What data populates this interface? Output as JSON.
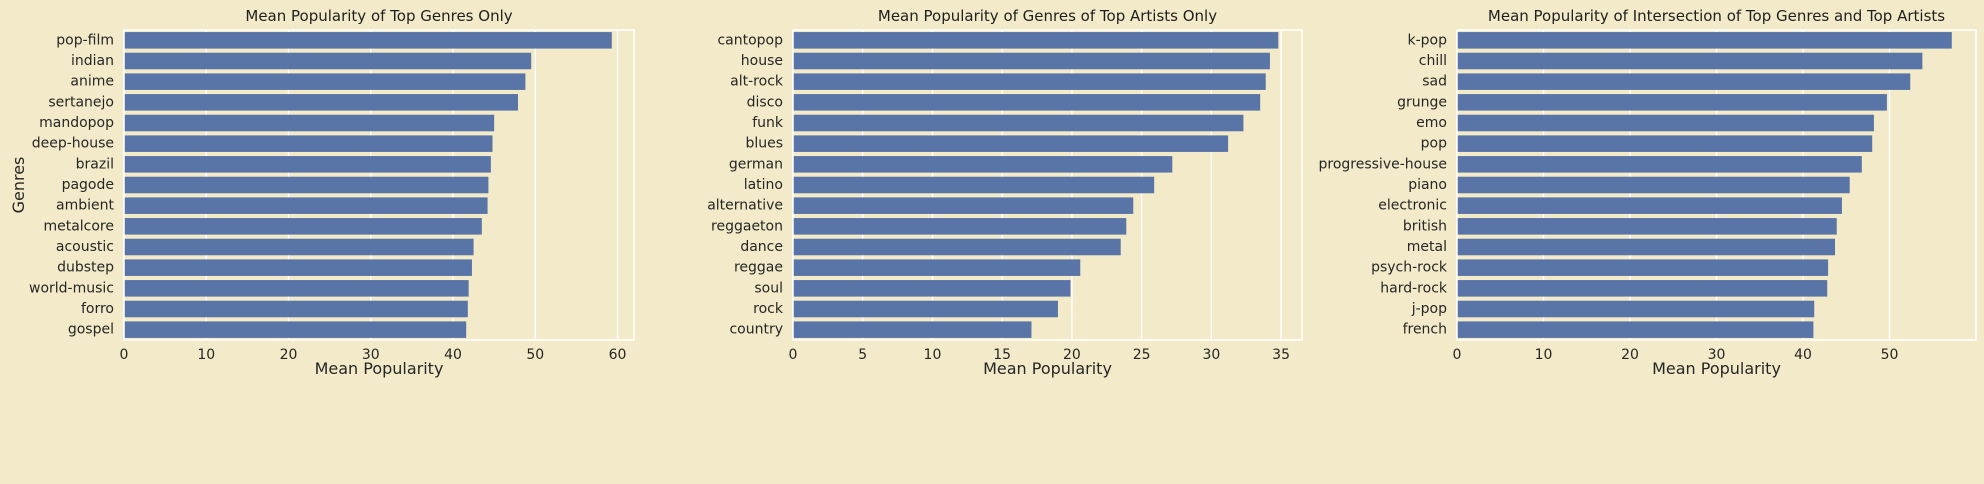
{
  "style": {
    "figure_background": "#F2EAC8",
    "plot_background": "#F2EAC8",
    "grid_color": "#FFFFFF",
    "bar_color": "#5975A7",
    "text_color": "#262626"
  },
  "chart_data": [
    {
      "type": "bar",
      "orientation": "horizontal",
      "title": "Mean Popularity of Top Genres Only",
      "xlabel": "Mean Popularity",
      "ylabel": "Genres",
      "xlim": [
        0,
        62
      ],
      "xticks": [
        0,
        10,
        20,
        30,
        40,
        50,
        60
      ],
      "grid": true,
      "categories": [
        "pop-film",
        "indian",
        "anime",
        "sertanejo",
        "mandopop",
        "deep-house",
        "brazil",
        "pagode",
        "ambient",
        "metalcore",
        "acoustic",
        "dubstep",
        "world-music",
        "forro",
        "gospel"
      ],
      "values": [
        59.3,
        49.5,
        48.8,
        47.9,
        45.0,
        44.8,
        44.6,
        44.3,
        44.2,
        43.5,
        42.5,
        42.3,
        41.9,
        41.8,
        41.6
      ]
    },
    {
      "type": "bar",
      "orientation": "horizontal",
      "title": "Mean Popularity of Genres of Top Artists Only",
      "xlabel": "Mean Popularity",
      "ylabel": "",
      "xlim": [
        0,
        36.5
      ],
      "xticks": [
        0,
        5,
        10,
        15,
        20,
        25,
        30,
        35
      ],
      "grid": true,
      "categories": [
        "cantopop",
        "house",
        "alt-rock",
        "disco",
        "funk",
        "blues",
        "german",
        "latino",
        "alternative",
        "reggaeton",
        "dance",
        "reggae",
        "soul",
        "rock",
        "country"
      ],
      "values": [
        34.8,
        34.2,
        33.9,
        33.5,
        32.3,
        31.2,
        27.2,
        25.9,
        24.4,
        23.9,
        23.5,
        20.6,
        19.9,
        19.0,
        17.1
      ]
    },
    {
      "type": "bar",
      "orientation": "horizontal",
      "title": "Mean Popularity of Intersection of Top Genres and Top Artists",
      "xlabel": "Mean Popularity",
      "ylabel": "",
      "xlim": [
        0,
        60
      ],
      "xticks": [
        0,
        10,
        20,
        30,
        40,
        50
      ],
      "grid": true,
      "categories": [
        "k-pop",
        "chill",
        "sad",
        "grunge",
        "emo",
        "pop",
        "progressive-house",
        "piano",
        "electronic",
        "british",
        "metal",
        "psych-rock",
        "hard-rock",
        "j-pop",
        "french"
      ],
      "values": [
        57.2,
        53.8,
        52.4,
        49.7,
        48.2,
        48.0,
        46.8,
        45.4,
        44.5,
        43.9,
        43.7,
        42.9,
        42.8,
        41.3,
        41.2
      ]
    }
  ]
}
